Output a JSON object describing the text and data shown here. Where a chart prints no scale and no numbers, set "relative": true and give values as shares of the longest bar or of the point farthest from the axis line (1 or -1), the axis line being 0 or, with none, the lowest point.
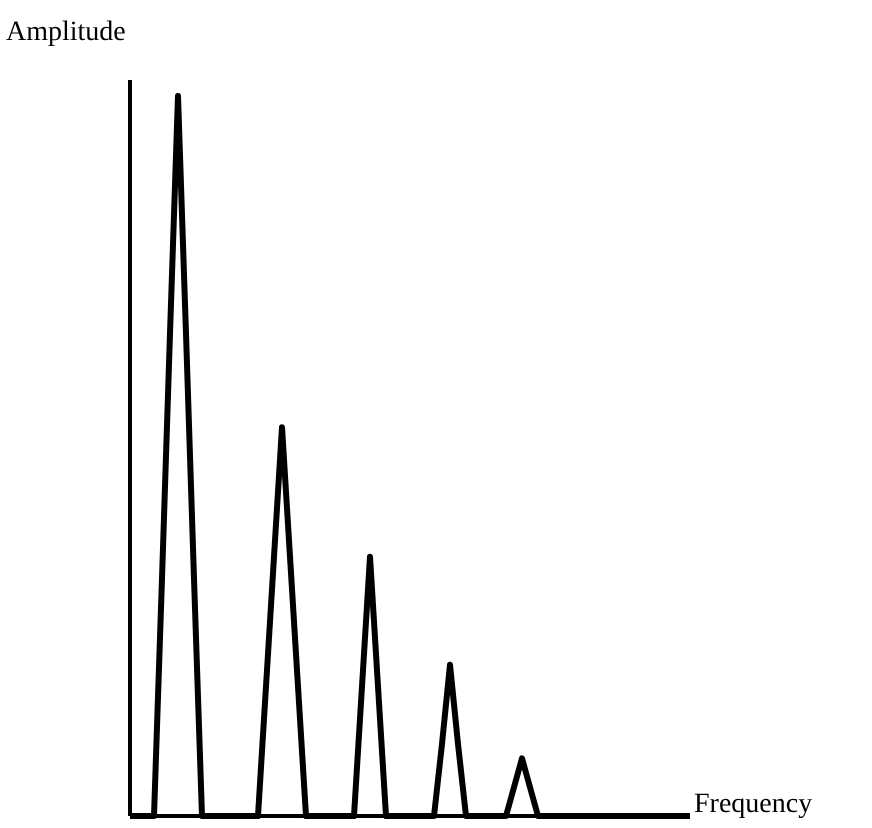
{
  "chart_data": {
    "type": "line",
    "xlabel": "Frequency",
    "ylabel": "Amplitude",
    "relative": true,
    "categories": [
      null,
      null,
      null,
      null,
      null,
      null,
      null,
      null,
      null,
      null,
      null,
      null,
      null,
      null,
      null,
      null,
      null,
      null,
      null,
      null,
      null,
      null,
      null,
      null,
      null,
      null,
      null,
      null,
      null,
      null,
      null,
      null,
      null,
      null,
      null,
      null,
      null,
      null,
      null,
      null,
      null,
      null,
      null,
      null,
      null,
      null,
      null,
      null,
      null,
      null,
      null,
      null,
      null,
      null,
      null,
      null,
      null,
      null,
      null,
      null,
      null,
      null,
      null,
      null,
      null,
      null,
      null,
      null,
      null,
      null,
      null
    ],
    "series": [
      {
        "color": "#000000",
        "values": [
          0,
          0,
          0,
          0,
          0.33,
          0.67,
          1,
          0.67,
          0.33,
          0,
          0,
          0,
          0,
          0,
          0,
          0,
          0,
          0.18,
          0.36,
          0.54,
          0.36,
          0.18,
          0,
          0,
          0,
          0,
          0,
          0,
          0,
          0.18,
          0.36,
          0.18,
          0,
          0,
          0,
          0,
          0,
          0,
          0,
          0.1,
          0.21,
          0.1,
          0,
          0,
          0,
          0,
          0,
          0,
          0.04,
          0.08,
          0.04,
          0,
          0,
          0,
          0,
          0,
          0,
          0,
          0,
          0,
          0,
          0,
          0,
          0,
          0,
          0,
          0,
          0,
          0,
          0,
          0
        ]
      }
    ]
  }
}
